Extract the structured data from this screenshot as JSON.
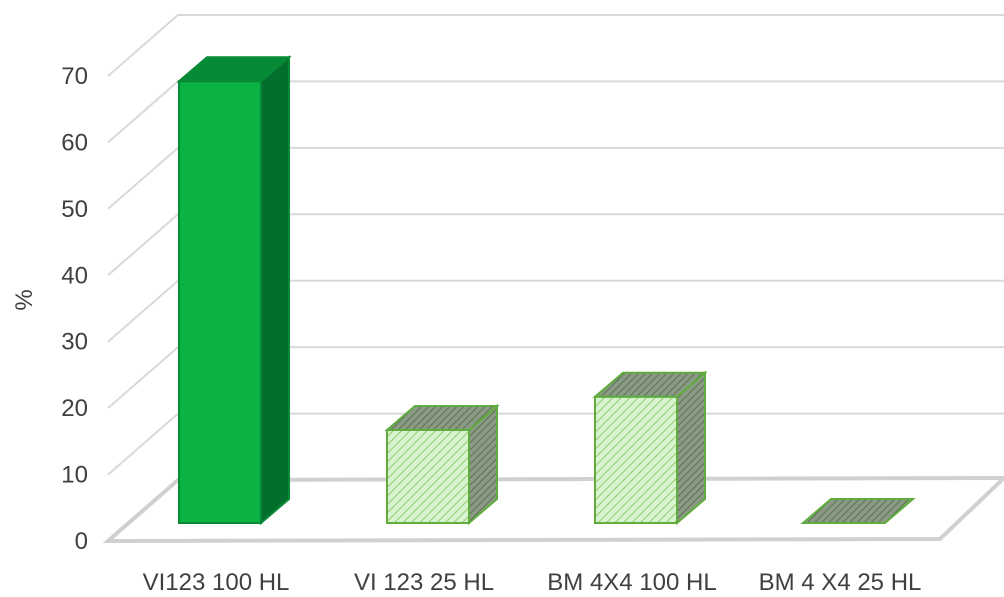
{
  "chart_data": {
    "type": "bar",
    "style": "3d-column",
    "categories": [
      "VI123 100 HL",
      "VI 123 25 HL",
      "BM 4X4 100 HL",
      "BM 4 X4 25 HL"
    ],
    "values": [
      66.5,
      14,
      19,
      0
    ],
    "ylabel": "%",
    "xlabel": "",
    "title": "",
    "ylim": [
      0,
      70
    ],
    "yticks": [
      0,
      10,
      20,
      30,
      40,
      50,
      60,
      70
    ],
    "grid": true,
    "legend": "none",
    "fills": [
      "solid",
      "hatched",
      "hatched",
      "hatched"
    ]
  },
  "colors": {
    "solid_front": "#0bb344",
    "solid_side": "#046f2c",
    "solid_top": "#078a35",
    "hatch_light": "#d9f2cf",
    "hatch_dark": "#8a9a84",
    "outline": "#5fad3e",
    "grid": "#d9d9d9",
    "floor": "#d0d0d0",
    "text": "#404040"
  }
}
